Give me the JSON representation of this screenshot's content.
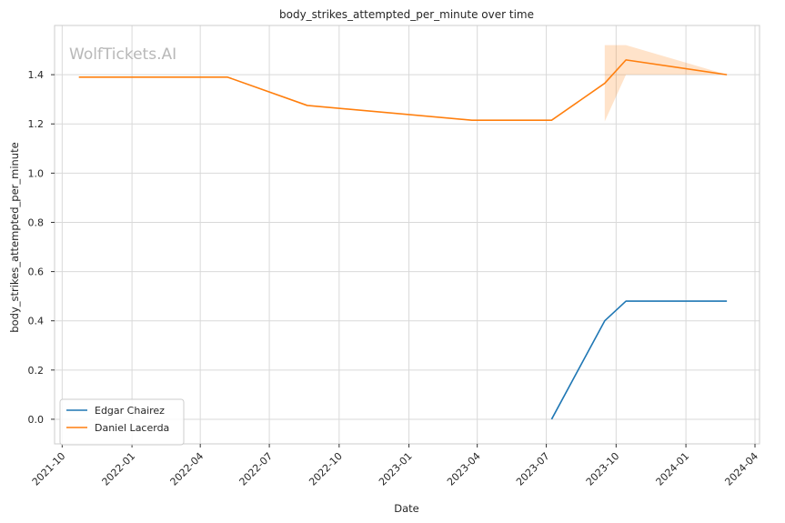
{
  "chart_data": {
    "type": "line",
    "title": "body_strikes_attempted_per_minute over time",
    "xlabel": "Date",
    "ylabel": "body_strikes_attempted_per_minute",
    "watermark": "WolfTickets.AI",
    "x_ticks": [
      "2021-10",
      "2022-01",
      "2022-04",
      "2022-07",
      "2022-10",
      "2023-01",
      "2023-04",
      "2023-07",
      "2023-10",
      "2024-01",
      "2024-04"
    ],
    "y_ticks": [
      "0.0",
      "0.2",
      "0.4",
      "0.6",
      "0.8",
      "1.0",
      "1.2",
      "1.4"
    ],
    "xlim": [
      "2021-09-21",
      "2024-04-07"
    ],
    "ylim": [
      -0.1,
      1.6
    ],
    "grid": true,
    "legend_position": "lower-left",
    "series": [
      {
        "name": "Edgar Chairez",
        "color": "#1f77b4",
        "points": [
          {
            "x": "2023-07-08",
            "y": 0.0
          },
          {
            "x": "2023-09-16",
            "y": 0.4
          },
          {
            "x": "2023-10-14",
            "y": 0.48
          },
          {
            "x": "2024-02-24",
            "y": 0.48
          }
        ]
      },
      {
        "name": "Daniel Lacerda",
        "color": "#ff7f0e",
        "points": [
          {
            "x": "2021-10-23",
            "y": 1.39
          },
          {
            "x": "2022-05-07",
            "y": 1.39
          },
          {
            "x": "2022-08-20",
            "y": 1.275
          },
          {
            "x": "2023-03-25",
            "y": 1.215
          },
          {
            "x": "2023-07-08",
            "y": 1.215
          },
          {
            "x": "2023-09-16",
            "y": 1.365
          },
          {
            "x": "2023-10-14",
            "y": 1.46
          },
          {
            "x": "2024-02-24",
            "y": 1.4
          }
        ],
        "confidence_band": [
          {
            "x": "2023-09-16",
            "low": 1.21,
            "high": 1.52
          },
          {
            "x": "2023-10-14",
            "low": 1.4,
            "high": 1.52
          },
          {
            "x": "2024-02-24",
            "low": 1.4,
            "high": 1.4
          }
        ]
      }
    ]
  }
}
